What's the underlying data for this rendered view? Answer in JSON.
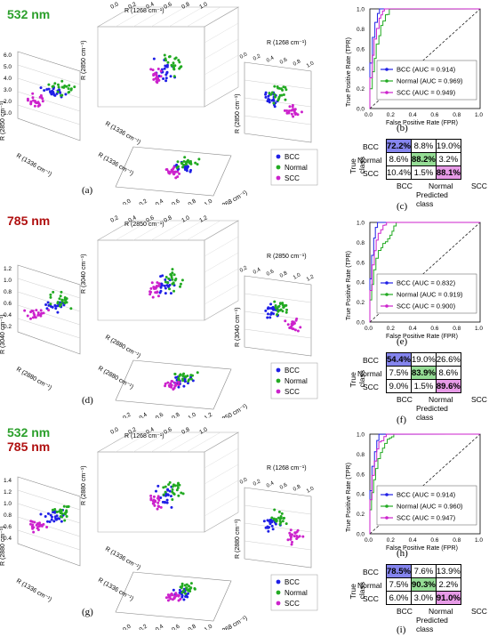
{
  "wavelengths": {
    "w532": "532 nm",
    "w785": "785 nm"
  },
  "colors": {
    "BCC": "#1f1fe6",
    "Normal": "#22aa22",
    "SCC": "#cc22cc",
    "green_text": "#2ca02c",
    "red_text": "#b01010"
  },
  "panel_labels": [
    "(a)",
    "(b)",
    "(c)",
    "(d)",
    "(e)",
    "(f)",
    "(g)",
    "(h)",
    "(i)"
  ],
  "legend": [
    "BCC",
    "Normal",
    "SCC"
  ],
  "axes3d": {
    "a": {
      "x": "R (1268 cm⁻¹)",
      "y": "R (1336 cm⁻¹)",
      "z": "R (2850 cm⁻¹)",
      "xticks": [
        "0.0",
        "0.2",
        "0.4",
        "0.6",
        "0.8",
        "1.0"
      ],
      "zticks": [
        "6.0",
        "5.0",
        "4.0",
        "3.0",
        "2.0",
        "1.0"
      ]
    },
    "d": {
      "x": "R (2850 cm⁻¹)",
      "y": "R (2880 cm⁻¹)",
      "z": "R (3040 cm⁻¹)",
      "xticks": [
        "0.2",
        "0.4",
        "0.6",
        "0.8",
        "1.0",
        "1.2"
      ],
      "zticks": [
        "1.2",
        "1.0",
        "0.8",
        "0.6",
        "0.4",
        "0.2"
      ]
    },
    "g": {
      "x": "R (1268 cm⁻¹)",
      "y": "R (1336 cm⁻¹)",
      "z": "R (2880 cm⁻¹)",
      "xticks": [
        "0.0",
        "0.2",
        "0.4",
        "0.6",
        "0.8",
        "1.0"
      ],
      "zticks": [
        "1.4",
        "1.2",
        "1.0",
        "0.8",
        "0.6",
        "0.4"
      ]
    }
  },
  "roc": {
    "ylabel": "True Positive Rate (TPR)",
    "xlabel": "False Positive Rate (FPR)",
    "ticks": [
      "0.0",
      "0.2",
      "0.4",
      "0.6",
      "0.8",
      "1.0"
    ],
    "b": [
      "BCC (AUC = 0.914)",
      "Normal (AUC = 0.969)",
      "SCC (AUC = 0.949)"
    ],
    "e": [
      "BCC (AUC = 0.832)",
      "Normal (AUC = 0.919)",
      "SCC (AUC = 0.900)"
    ],
    "h": [
      "BCC (AUC = 0.914)",
      "Normal (AUC = 0.960)",
      "SCC (AUC = 0.947)"
    ]
  },
  "confusion": {
    "ylabel": "True class",
    "xlabel": "Predicted class",
    "classes": [
      "BCC",
      "Normal",
      "SCC"
    ],
    "c": [
      [
        "72.2%",
        "8.8%",
        "19.0%"
      ],
      [
        "8.6%",
        "88.2%",
        "3.2%"
      ],
      [
        "10.4%",
        "1.5%",
        "88.1%"
      ]
    ],
    "f": [
      [
        "54.4%",
        "19.0%",
        "26.6%"
      ],
      [
        "7.5%",
        "83.9%",
        "8.6%"
      ],
      [
        "9.0%",
        "1.5%",
        "89.6%"
      ]
    ],
    "i": [
      [
        "78.5%",
        "7.6%",
        "13.9%"
      ],
      [
        "7.5%",
        "90.3%",
        "2.2%"
      ],
      [
        "6.0%",
        "3.0%",
        "91.0%"
      ]
    ]
  }
}
